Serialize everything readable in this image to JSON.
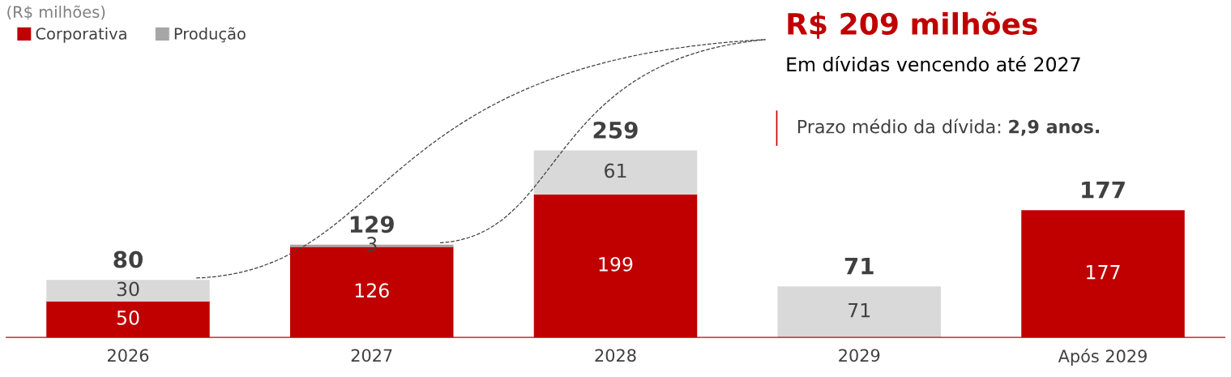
{
  "chart_data": {
    "type": "bar",
    "subtitle": "(R$ milhões)",
    "categories": [
      "2026",
      "2027",
      "2028",
      "2029",
      "Após 2029"
    ],
    "stacked": true,
    "series": [
      {
        "name": "Corporativa",
        "color": "#c00000",
        "values": [
          50,
          126,
          199,
          null,
          177
        ],
        "value_labels": [
          "50",
          "126",
          "199",
          null,
          "177"
        ]
      },
      {
        "name": "Produção",
        "color": "#a6a6a6",
        "values": [
          null,
          3,
          null,
          null,
          null
        ],
        "value_labels": [
          null,
          "3",
          null,
          null,
          null
        ]
      },
      {
        "color": "#d9d9d9",
        "values": [
          30,
          null,
          61,
          71,
          null
        ],
        "value_labels": [
          "30",
          null,
          "61",
          "71",
          null
        ]
      }
    ],
    "totals": [
      "80",
      "129",
      "259",
      "71",
      "177"
    ],
    "annotations": [
      "R$ 209 milhões",
      "Em dívidas vencendo até 2027",
      "Prazo médio da dívida:",
      "2,9 anos."
    ],
    "legend": "top left",
    "grid": false
  }
}
